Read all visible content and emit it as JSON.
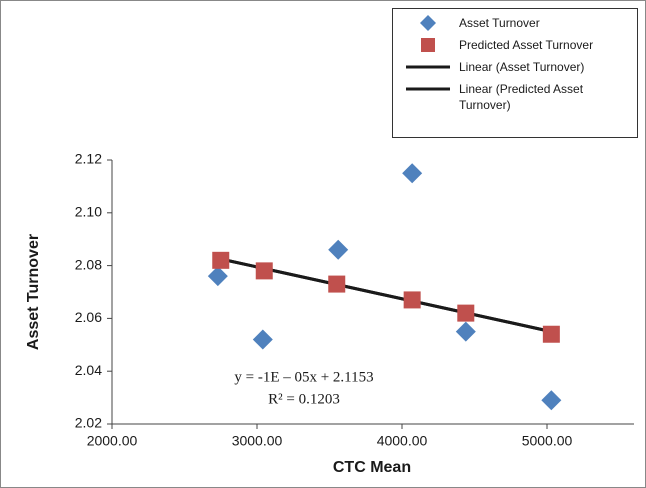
{
  "chart_data": {
    "type": "scatter",
    "x_label": "CTC Mean",
    "y_label": "Asset Turnover",
    "xlim": [
      2000,
      5600
    ],
    "xticks": [
      {
        "value": 2000,
        "label": "2000.00"
      },
      {
        "value": 3000,
        "label": "3000.00"
      },
      {
        "value": 4000,
        "label": "4000.00"
      },
      {
        "value": 5000,
        "label": "5000.00"
      }
    ],
    "ylim": [
      2.02,
      2.12
    ],
    "yticks": [
      2.02,
      2.04,
      2.06,
      2.08,
      {
        "value": 2.1,
        "label": "2.10"
      },
      2.12
    ],
    "grid": false,
    "legend": "top-right",
    "series": [
      {
        "name": "Asset Turnover",
        "marker": "diamond",
        "color": "#4f81bd",
        "x": [
          2730,
          3040,
          3560,
          4070,
          4440,
          5030
        ],
        "values": [
          2.076,
          2.052,
          2.086,
          2.115,
          2.055,
          2.029
        ]
      },
      {
        "name": "Predicted Asset Turnover",
        "marker": "square",
        "color": "#c0504d",
        "x": [
          2750,
          3050,
          3550,
          4070,
          4440,
          5030
        ],
        "values": [
          2.082,
          2.078,
          2.073,
          2.067,
          2.062,
          2.054
        ]
      },
      {
        "name": "Linear (Asset Turnover)",
        "marker": "line",
        "color": "#1a1a1a",
        "x": [
          2750,
          5030
        ],
        "values": [
          2.0825,
          2.055
        ]
      },
      {
        "name": "Linear (Predicted Asset Turnover)",
        "marker": "line",
        "color": "#1a1a1a",
        "x": [
          2750,
          5030
        ],
        "values": [
          2.0825,
          2.055
        ]
      }
    ],
    "annotations": [
      "y = -1E – 05x + 2.1153",
      "R² = 0.1203"
    ]
  }
}
